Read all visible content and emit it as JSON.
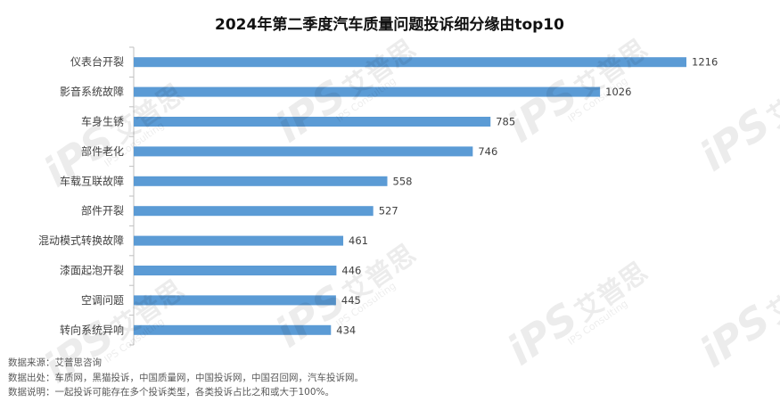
{
  "chart_data": {
    "type": "bar",
    "orientation": "horizontal",
    "title": "2024年第二季度汽车质量问题投诉细分缘由top10",
    "categories": [
      "仪表台开裂",
      "影音系统故障",
      "车身生锈",
      "部件老化",
      "车载互联故障",
      "部件开裂",
      "混动模式转换故障",
      "漆面起泡开裂",
      "空调问题",
      "转向系统异响"
    ],
    "values": [
      1216,
      1026,
      785,
      746,
      558,
      527,
      461,
      446,
      445,
      434
    ],
    "xlabel": "",
    "ylabel": "",
    "xlim": [
      0,
      1216
    ],
    "grid": false,
    "legend": "none",
    "bar_color": "#5b9bd5"
  },
  "notes": [
    {
      "label": "数据来源：",
      "text": "艾普思咨询"
    },
    {
      "label": "数据出处：",
      "text": "车质网，黑猫投诉，中国质量网，中国投诉网，中国召回网，汽车投诉网。"
    },
    {
      "label": "数据说明：",
      "text": "一起投诉可能存在多个投诉类型，各类投诉占比之和或大于100%。"
    }
  ],
  "watermark": {
    "logo": "iPS",
    "name": "艾普思",
    "sub": "IPS Consulting"
  }
}
